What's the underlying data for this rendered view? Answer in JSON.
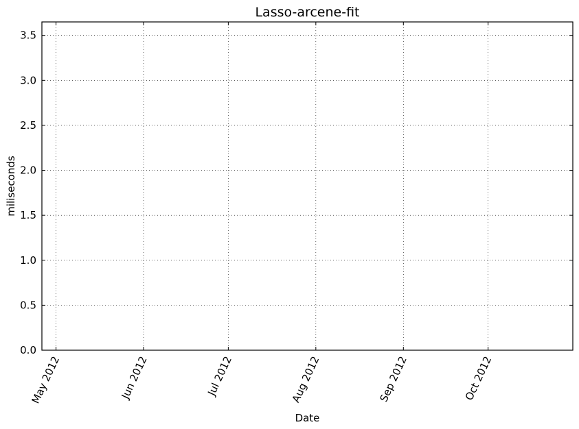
{
  "chart_data": {
    "type": "line",
    "title": "Lasso-arcene-fit",
    "xlabel": "Date",
    "ylabel": "miliseconds",
    "x_axis_type": "date",
    "xlim": [
      "2012-04-26",
      "2012-10-31"
    ],
    "ylim": [
      0,
      3.65
    ],
    "x_ticks": [
      {
        "date": "2012-05-01",
        "label": "May 2012"
      },
      {
        "date": "2012-06-01",
        "label": "Jun 2012"
      },
      {
        "date": "2012-07-01",
        "label": "Jul 2012"
      },
      {
        "date": "2012-08-01",
        "label": "Aug 2012"
      },
      {
        "date": "2012-09-01",
        "label": "Sep 2012"
      },
      {
        "date": "2012-10-01",
        "label": "Oct 2012"
      }
    ],
    "y_ticks": [
      {
        "value": 0.0,
        "label": "0.0"
      },
      {
        "value": 0.5,
        "label": "0.5"
      },
      {
        "value": 1.0,
        "label": "1.0"
      },
      {
        "value": 1.5,
        "label": "1.5"
      },
      {
        "value": 2.0,
        "label": "2.0"
      },
      {
        "value": 2.5,
        "label": "2.5"
      },
      {
        "value": 3.0,
        "label": "3.0"
      },
      {
        "value": 3.5,
        "label": "3.5"
      }
    ],
    "grid": true,
    "series": []
  }
}
